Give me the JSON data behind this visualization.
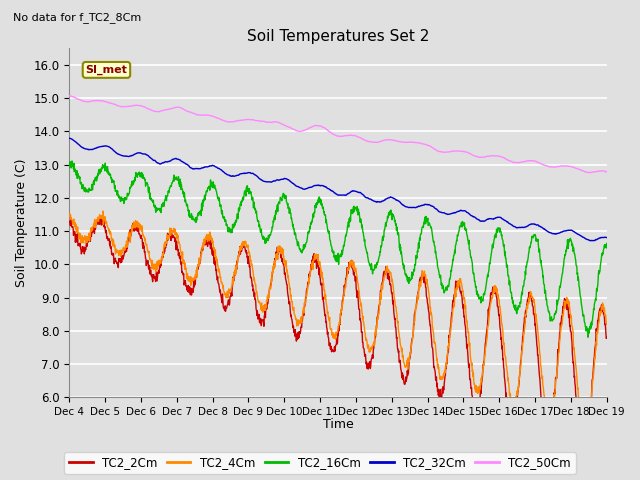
{
  "title": "Soil Temperatures Set 2",
  "subtitle": "No data for f_TC2_8Cm",
  "ylabel": "Soil Temperature (C)",
  "xlabel": "Time",
  "ylim": [
    6.0,
    16.5
  ],
  "yticks": [
    6.0,
    7.0,
    8.0,
    9.0,
    10.0,
    11.0,
    12.0,
    13.0,
    14.0,
    15.0,
    16.0
  ],
  "x_labels": [
    "Dec 4",
    "Dec 5",
    "Dec 6",
    "Dec 7",
    "Dec 8",
    "Dec 9",
    "Dec 10",
    "Dec 11",
    "Dec 12",
    "Dec 13",
    "Dec 14",
    "Dec 15",
    "Dec 16",
    "Dec 17",
    "Dec 18",
    "Dec 19"
  ],
  "series_colors": {
    "TC2_2Cm": "#cc0000",
    "TC2_4Cm": "#ff8800",
    "TC2_16Cm": "#00bb00",
    "TC2_32Cm": "#0000cc",
    "TC2_50Cm": "#ff88ff"
  },
  "legend_label": "SI_met",
  "legend_box_color": "#ffffcc",
  "legend_box_border": "#888800",
  "bg_color": "#e0e0e0",
  "grid_color": "#ffffff",
  "n_points": 1440
}
